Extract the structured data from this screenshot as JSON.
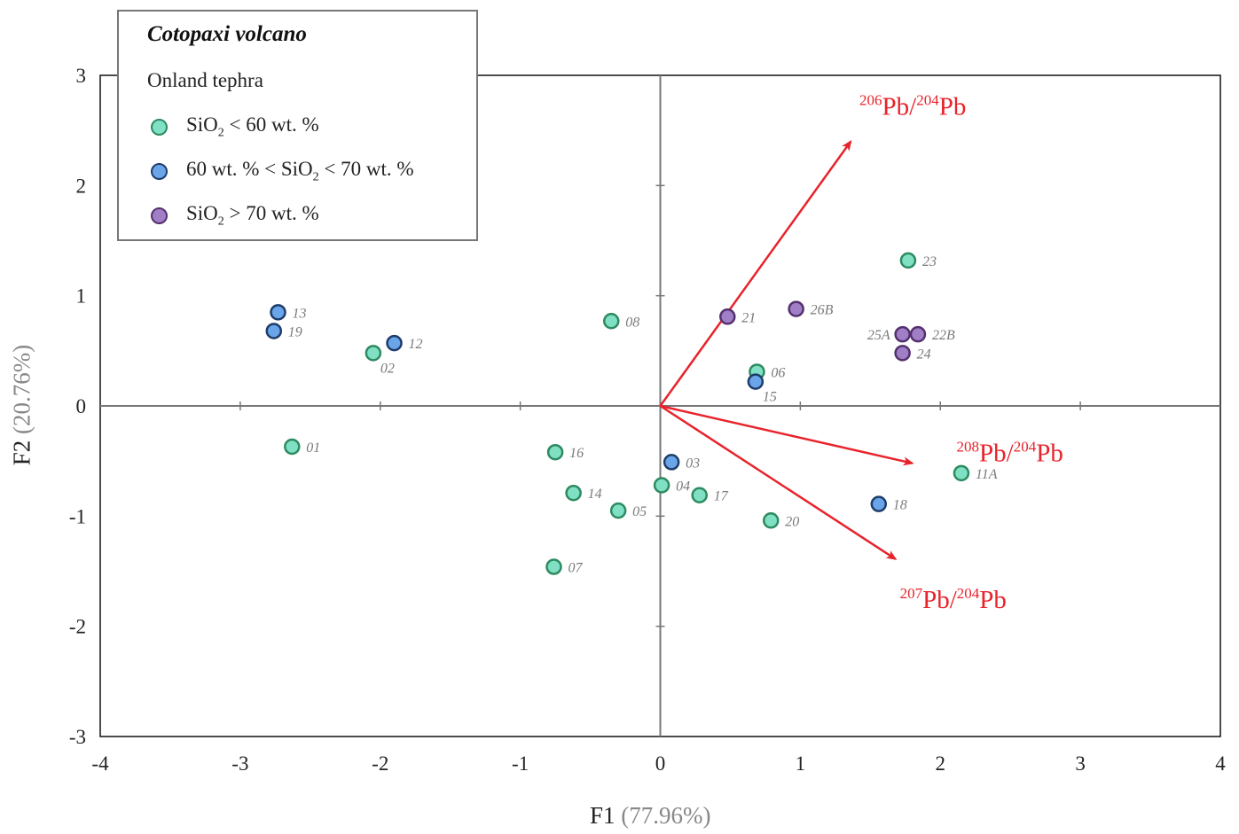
{
  "chart_data": {
    "type": "scatter",
    "xlim": [
      -4,
      4
    ],
    "ylim": [
      -3,
      3
    ],
    "x_ticks": [
      "-4",
      "-3",
      "-2",
      "-1",
      "0",
      "1",
      "2",
      "3",
      "4"
    ],
    "y_ticks": [
      "-3",
      "-2",
      "-1",
      "0",
      "1",
      "2",
      "3"
    ],
    "xlabel": "F1",
    "xlabel_pct": "(77.96%)",
    "ylabel": "F2",
    "ylabel_pct": "(20.76%)",
    "legend": {
      "title": "Cotopaxi volcano",
      "subtitle": "Onland tephra",
      "items": [
        {
          "pre": "SiO",
          "sub": "2",
          "post": " < 60 wt. %",
          "color": "#7fe0c4",
          "edge": "#2e8a60"
        },
        {
          "pre": "60 wt. % < SiO",
          "sub": "2",
          "post": " < 70 wt. %",
          "color": "#6aa5ea",
          "edge": "#1f3d6b"
        },
        {
          "pre": "SiO",
          "sub": "2",
          "post": " > 70 wt. %",
          "color": "#a07fc6",
          "edge": "#55306f"
        }
      ]
    },
    "series": [
      {
        "name": "SiO2 < 60 wt. %",
        "color": "#7fe0c4",
        "edge": "#2e8a60",
        "points": [
          {
            "x": -2.63,
            "y": -0.37,
            "label": "01"
          },
          {
            "x": -2.05,
            "y": 0.48,
            "label": "02"
          },
          {
            "x": -0.35,
            "y": 0.77,
            "label": "08"
          },
          {
            "x": -0.75,
            "y": -0.42,
            "label": "16"
          },
          {
            "x": -0.62,
            "y": -0.79,
            "label": "14"
          },
          {
            "x": -0.3,
            "y": -0.95,
            "label": "05"
          },
          {
            "x": -0.76,
            "y": -1.46,
            "label": "07"
          },
          {
            "x": 0.01,
            "y": -0.72,
            "label": "04"
          },
          {
            "x": 0.28,
            "y": -0.81,
            "label": "17"
          },
          {
            "x": 0.79,
            "y": -1.04,
            "label": "20"
          },
          {
            "x": 0.69,
            "y": 0.31,
            "label": "06"
          },
          {
            "x": 1.77,
            "y": 1.32,
            "label": "23"
          },
          {
            "x": 2.15,
            "y": -0.61,
            "label": "11A"
          }
        ]
      },
      {
        "name": "60 wt. % < SiO2 < 70 wt. %",
        "color": "#6aa5ea",
        "edge": "#1f3d6b",
        "points": [
          {
            "x": -2.73,
            "y": 0.85,
            "label": "13"
          },
          {
            "x": -2.76,
            "y": 0.68,
            "label": "19"
          },
          {
            "x": -1.9,
            "y": 0.57,
            "label": "12"
          },
          {
            "x": 0.68,
            "y": 0.22,
            "label": "15"
          },
          {
            "x": 0.08,
            "y": -0.51,
            "label": "03"
          },
          {
            "x": 1.56,
            "y": -0.89,
            "label": "18"
          }
        ]
      },
      {
        "name": "SiO2 > 70 wt. %",
        "color": "#a07fc6",
        "edge": "#55306f",
        "points": [
          {
            "x": 0.48,
            "y": 0.81,
            "label": "21"
          },
          {
            "x": 0.97,
            "y": 0.88,
            "label": "26B"
          },
          {
            "x": 1.73,
            "y": 0.65,
            "label": "25A"
          },
          {
            "x": 1.84,
            "y": 0.65,
            "label": "22B"
          },
          {
            "x": 1.73,
            "y": 0.48,
            "label": "24"
          }
        ]
      }
    ],
    "vectors": [
      {
        "x": 1.36,
        "y": 2.4,
        "sup1": "206",
        "main1": "Pb/",
        "sup2": "204",
        "main2": "Pb"
      },
      {
        "x": 1.8,
        "y": -0.52,
        "sup1": "208",
        "main1": "Pb/",
        "sup2": "204",
        "main2": "Pb"
      },
      {
        "x": 1.68,
        "y": -1.39,
        "sup1": "207",
        "main1": "Pb/",
        "sup2": "204",
        "main2": "Pb"
      }
    ],
    "vector_color": "#e8232b"
  }
}
